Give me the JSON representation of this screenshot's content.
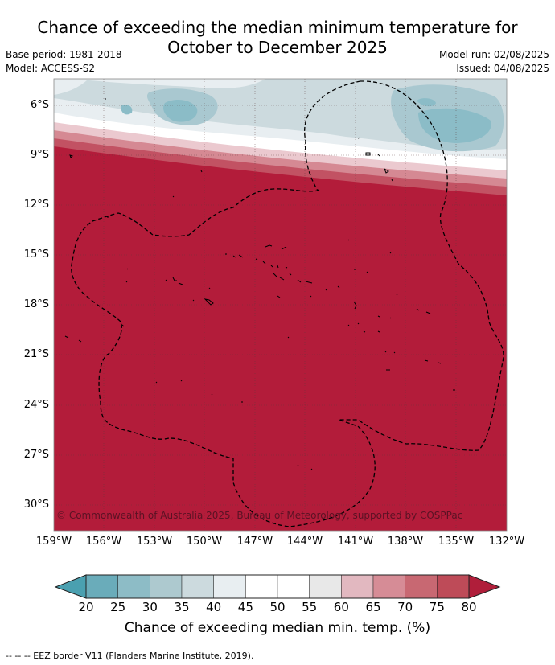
{
  "title_line1": "Chance of exceeding the median minimum temperature for",
  "title_line2": "October to December 2025",
  "base_period": "Base period: 1981-2018",
  "model": "Model: ACCESS-S2",
  "model_run": "Model run: 02/08/2025",
  "issued": "Issued: 04/08/2025",
  "lat_labels": [
    "6°S",
    "9°S",
    "12°S",
    "15°S",
    "18°S",
    "21°S",
    "24°S",
    "27°S",
    "30°S"
  ],
  "lon_labels": [
    "159°W",
    "156°W",
    "153°W",
    "150°W",
    "147°W",
    "144°W",
    "141°W",
    "138°W",
    "135°W",
    "132°W"
  ],
  "copyright": "© Commonwealth of Australia 2025, Bureau of Meteorology, supported by COSPPac",
  "colorbar": {
    "ticks": [
      "20",
      "25",
      "30",
      "35",
      "40",
      "45",
      "50",
      "55",
      "60",
      "65",
      "70",
      "75",
      "80"
    ],
    "colors": [
      "#4aa0b0",
      "#6aacba",
      "#8dbcc6",
      "#adc9cf",
      "#ccdade",
      "#e8eef1",
      "#ffffff",
      "#ffffff",
      "#e8e8e8",
      "#e2b8c0",
      "#d68c96",
      "#c86872",
      "#be4b58",
      "#b01e3a"
    ],
    "label": "Chance of exceeding median min. temp. (%)"
  },
  "footnote": "--  --  -- EEZ border V11 (Flanders Marine Institute, 2019).",
  "colors": {
    "high_probability": "#b31c3a",
    "low_probability": "#8bbcc7",
    "neutral": "#ffffff"
  }
}
